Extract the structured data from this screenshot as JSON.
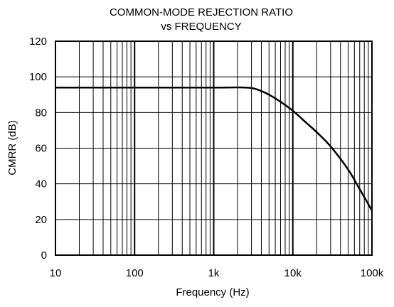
{
  "chart_data": {
    "type": "line",
    "title": "COMMON-MODE REJECTION RATIO",
    "subtitle": "vs FREQUENCY",
    "xlabel": "Frequency (Hz)",
    "ylabel": "CMRR (dB)",
    "xscale": "log",
    "xlim": [
      10,
      100000
    ],
    "ylim": [
      0,
      120
    ],
    "grid": true,
    "x_ticks": [
      10,
      100,
      1000,
      10000,
      100000
    ],
    "x_tick_labels": [
      "10",
      "100",
      "1k",
      "10k",
      "100k"
    ],
    "y_ticks": [
      0,
      20,
      40,
      60,
      80,
      100,
      120
    ],
    "y_tick_labels": [
      "0",
      "20",
      "40",
      "60",
      "80",
      "100",
      "120"
    ],
    "series": [
      {
        "x": [
          10,
          100,
          1000,
          2500,
          3500,
          5000,
          7000,
          10000,
          15000,
          20000,
          30000,
          50000,
          70000,
          100000
        ],
        "y": [
          94,
          94,
          94,
          94,
          93,
          90,
          86,
          81,
          74,
          69,
          61,
          48,
          37,
          25
        ]
      }
    ],
    "colors": {
      "line": "#000000",
      "grid": "#000000",
      "background": "#ffffff"
    }
  }
}
